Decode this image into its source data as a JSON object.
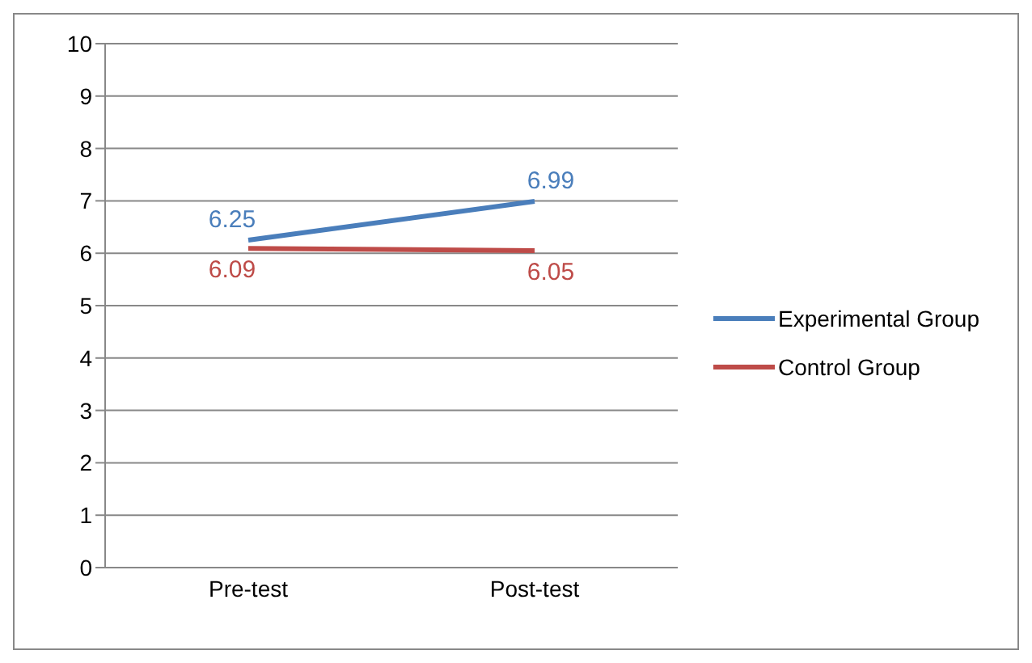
{
  "chart_data": {
    "type": "line",
    "categories": [
      "Pre-test",
      "Post-test"
    ],
    "series": [
      {
        "name": "Experimental Group",
        "color": "#4a7ebb",
        "values": [
          6.25,
          6.99
        ]
      },
      {
        "name": "Control Group",
        "color": "#be4b48",
        "values": [
          6.09,
          6.05
        ]
      }
    ],
    "ylim": [
      0,
      10
    ],
    "yticks": [
      0,
      1,
      2,
      3,
      4,
      5,
      6,
      7,
      8,
      9,
      10
    ],
    "grid": "y",
    "legend": "right",
    "data_labels": true,
    "marker": "none",
    "line_style": "solid"
  }
}
